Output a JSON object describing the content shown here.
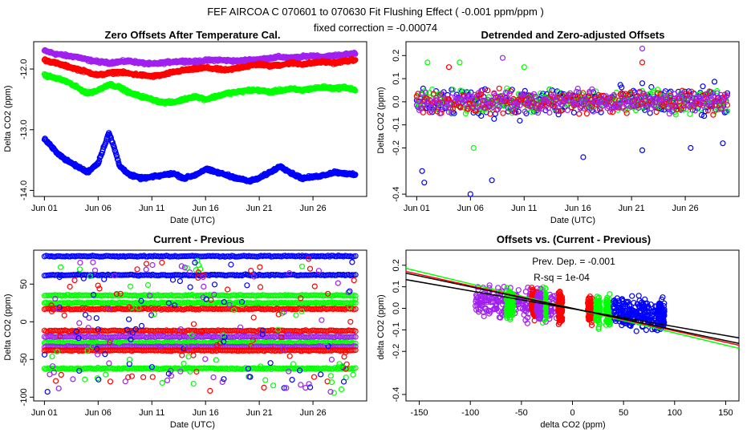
{
  "figure": {
    "title": "FEF   AIRCOA C   070601 to 070630   Fit Flushing Effect ( -0.001 ppm/ppm )",
    "subtitle": "fixed correction = -0.00074"
  },
  "colors": {
    "purple": "#a020f0",
    "red": "#ff0000",
    "green": "#00ff00",
    "blue": "#0000ff",
    "black": "#000000"
  },
  "chart_data": [
    {
      "type": "scatter",
      "title": "Zero Offsets After Temperature Cal.",
      "xlabel": "Date (UTC)",
      "ylabel": "Delta CO2 (ppm)",
      "xlim": [
        0,
        31
      ],
      "ylim": [
        -14.1,
        -11.55
      ],
      "xticks": [
        1,
        6,
        11,
        16,
        21,
        26
      ],
      "xtick_labels": [
        "Jun 01",
        "Jun 06",
        "Jun 11",
        "Jun 16",
        "Jun 21",
        "Jun 26"
      ],
      "yticks": [
        -14.0,
        -13.0,
        -12.0
      ],
      "ytick_labels": [
        "-14.0",
        "-13.0",
        "-12.0"
      ],
      "series": [
        {
          "name": "purple",
          "color": "#a020f0",
          "x": [
            1,
            2,
            3,
            4,
            5,
            6,
            7,
            8,
            9,
            10,
            11,
            12,
            13,
            14,
            15,
            16,
            17,
            18,
            19,
            20,
            21,
            22,
            23,
            24,
            25,
            26,
            27,
            28,
            29,
            30
          ],
          "y": [
            -11.7,
            -11.75,
            -11.78,
            -11.8,
            -11.85,
            -11.88,
            -11.9,
            -11.88,
            -11.87,
            -11.9,
            -11.92,
            -11.9,
            -11.88,
            -11.87,
            -11.88,
            -11.86,
            -11.85,
            -11.86,
            -11.87,
            -11.85,
            -11.84,
            -11.82,
            -11.8,
            -11.82,
            -11.8,
            -11.78,
            -11.8,
            -11.78,
            -11.76,
            -11.74
          ]
        },
        {
          "name": "red",
          "color": "#ff0000",
          "x": [
            1,
            2,
            3,
            4,
            5,
            6,
            7,
            8,
            9,
            10,
            11,
            12,
            13,
            14,
            15,
            16,
            17,
            18,
            19,
            20,
            21,
            22,
            23,
            24,
            25,
            26,
            27,
            28,
            29,
            30
          ],
          "y": [
            -11.85,
            -11.9,
            -11.95,
            -12.0,
            -12.05,
            -12.1,
            -12.07,
            -12.05,
            -12.08,
            -12.1,
            -12.12,
            -12.1,
            -12.05,
            -12.02,
            -12.0,
            -11.98,
            -12.0,
            -12.02,
            -11.98,
            -11.95,
            -11.92,
            -11.95,
            -11.93,
            -11.9,
            -11.92,
            -11.9,
            -11.88,
            -11.9,
            -11.87,
            -11.85
          ]
        },
        {
          "name": "green",
          "color": "#00ff00",
          "x": [
            1,
            2,
            3,
            4,
            5,
            6,
            7,
            8,
            9,
            10,
            11,
            12,
            13,
            14,
            15,
            16,
            17,
            18,
            19,
            20,
            21,
            22,
            23,
            24,
            25,
            26,
            27,
            28,
            29,
            30
          ],
          "y": [
            -12.1,
            -12.15,
            -12.2,
            -12.3,
            -12.4,
            -12.35,
            -12.25,
            -12.3,
            -12.4,
            -12.45,
            -12.5,
            -12.55,
            -12.55,
            -12.5,
            -12.45,
            -12.5,
            -12.45,
            -12.4,
            -12.38,
            -12.35,
            -12.35,
            -12.38,
            -12.35,
            -12.33,
            -12.35,
            -12.32,
            -12.3,
            -12.32,
            -12.3,
            -12.35
          ]
        },
        {
          "name": "blue",
          "color": "#0000ff",
          "x": [
            1,
            2,
            3,
            4,
            5,
            6,
            6.5,
            7,
            7.5,
            8,
            9,
            10,
            11,
            12,
            13,
            14,
            15,
            16,
            17,
            18,
            19,
            20,
            21,
            22,
            23,
            24,
            25,
            26,
            27,
            28,
            29,
            30
          ],
          "y": [
            -13.15,
            -13.35,
            -13.5,
            -13.6,
            -13.7,
            -13.55,
            -13.3,
            -13.05,
            -13.3,
            -13.6,
            -13.75,
            -13.8,
            -13.78,
            -13.75,
            -13.72,
            -13.8,
            -13.75,
            -13.65,
            -13.7,
            -13.75,
            -13.8,
            -13.85,
            -13.8,
            -13.7,
            -13.6,
            -13.72,
            -13.8,
            -13.78,
            -13.75,
            -13.7,
            -13.72,
            -13.75
          ]
        }
      ]
    },
    {
      "type": "scatter",
      "title": "Detrended and Zero-adjusted Offsets",
      "xlabel": "Date (UTC)",
      "ylabel": "Delta CO2 (ppm)",
      "xlim": [
        0,
        31
      ],
      "ylim": [
        -0.41,
        0.26
      ],
      "xticks": [
        1,
        6,
        11,
        16,
        21,
        26
      ],
      "xtick_labels": [
        "Jun 01",
        "Jun 06",
        "Jun 11",
        "Jun 16",
        "Jun 21",
        "Jun 26"
      ],
      "yticks": [
        -0.4,
        -0.2,
        -0.1,
        0.0,
        0.1,
        0.2
      ],
      "ytick_labels": [
        "-0.4",
        "-0.2",
        "-0.1",
        "0.0",
        "0.1",
        "0.2"
      ],
      "series": [
        {
          "name": "blue",
          "color": "#0000ff",
          "spread": 0.1,
          "outliers": [
            [
              1.5,
              -0.3
            ],
            [
              1.7,
              -0.35
            ],
            [
              6,
              -0.4
            ],
            [
              8,
              -0.34
            ],
            [
              16.5,
              -0.24
            ],
            [
              26.5,
              -0.2
            ],
            [
              29.5,
              -0.18
            ],
            [
              22,
              -0.21
            ]
          ]
        },
        {
          "name": "green",
          "color": "#00ff00",
          "spread": 0.07,
          "outliers": [
            [
              2,
              0.17
            ],
            [
              5,
              0.17
            ],
            [
              6.3,
              -0.2
            ],
            [
              11,
              0.15
            ]
          ]
        },
        {
          "name": "red",
          "color": "#ff0000",
          "spread": 0.07,
          "outliers": [
            [
              4,
              0.15
            ],
            [
              22,
              0.17
            ]
          ]
        },
        {
          "name": "purple",
          "color": "#a020f0",
          "spread": 0.07,
          "outliers": [
            [
              22,
              0.23
            ],
            [
              9,
              0.19
            ]
          ]
        }
      ]
    },
    {
      "type": "scatter",
      "title": "Current - Previous",
      "xlabel": "Date (UTC)",
      "ylabel": "Delta CO2 (ppm)",
      "xlim": [
        0,
        31
      ],
      "ylim": [
        -105,
        95
      ],
      "xticks": [
        1,
        6,
        11,
        16,
        21,
        26
      ],
      "xtick_labels": [
        "Jun 01",
        "Jun 06",
        "Jun 11",
        "Jun 16",
        "Jun 21",
        "Jun 26"
      ],
      "yticks": [
        -100,
        -50,
        0,
        50
      ],
      "ytick_labels": [
        "-100",
        "-50",
        "0",
        "50"
      ],
      "bands": [
        {
          "color": "#0000ff",
          "y": 87
        },
        {
          "color": "#0000ff",
          "y": 62
        },
        {
          "color": "#00ff00",
          "y": 35
        },
        {
          "color": "#00ff00",
          "y": 25
        },
        {
          "color": "#ff0000",
          "y": 17
        },
        {
          "color": "#ff0000",
          "y": -12
        },
        {
          "color": "#a020f0",
          "y": -20
        },
        {
          "color": "#00ff00",
          "y": -28
        },
        {
          "color": "#a020f0",
          "y": -33
        },
        {
          "color": "#ff0000",
          "y": -38
        },
        {
          "color": "#00ff00",
          "y": -62
        }
      ]
    },
    {
      "type": "scatter",
      "title": "Offsets vs. (Current - Previous)",
      "xlabel": "delta CO2 (ppm)",
      "ylabel": "delta CO2 (ppm)",
      "xlim": [
        -163,
        163
      ],
      "ylim": [
        -0.43,
        0.27
      ],
      "xticks": [
        -150,
        -100,
        -50,
        0,
        50,
        100,
        150
      ],
      "xtick_labels": [
        "-150",
        "-100",
        "-50",
        "0",
        "50",
        "100",
        "150"
      ],
      "yticks": [
        -0.4,
        -0.2,
        -0.1,
        0.0,
        0.1,
        0.2
      ],
      "ytick_labels": [
        "-0.4",
        "-0.2",
        "-0.1",
        "0.0",
        "0.1",
        "0.2"
      ],
      "annotations": [
        "Prev. Dep. =  -0.001",
        "R-sq =  1e-04"
      ],
      "fit_lines": [
        {
          "color": "#00ff00",
          "slope": -0.00114,
          "intercept": 0.0
        },
        {
          "color": "#ff0000",
          "slope": -0.00105,
          "intercept": 0.0
        },
        {
          "color": "#000000",
          "slope": -0.001,
          "intercept": 0.0
        },
        {
          "color": "#000000",
          "slope": -0.00083,
          "intercept": -0.002
        }
      ],
      "clusters": [
        {
          "color": "#a020f0",
          "x_range": [
            -95,
            -12
          ],
          "center": -40
        },
        {
          "color": "#00ff00",
          "x_range": [
            -65,
            -58
          ],
          "center": -62
        },
        {
          "color": "#ff0000",
          "x_range": [
            -40,
            -36
          ],
          "center": -38
        },
        {
          "color": "#00ff00",
          "x_range": [
            -30,
            -26
          ],
          "center": -28
        },
        {
          "color": "#a020f0",
          "x_range": [
            -35,
            -31
          ],
          "center": -33
        },
        {
          "color": "#ff0000",
          "x_range": [
            -14,
            -10
          ],
          "center": -12
        },
        {
          "color": "#ff0000",
          "x_range": [
            15,
            19
          ],
          "center": 17
        },
        {
          "color": "#00ff00",
          "x_range": [
            23,
            27
          ],
          "center": 25
        },
        {
          "color": "#00ff00",
          "x_range": [
            33,
            37
          ],
          "center": 35
        },
        {
          "color": "#0000ff",
          "x_range": [
            40,
            90
          ],
          "center": 62
        },
        {
          "color": "#0000ff",
          "x_range": [
            84,
            90
          ],
          "center": 87
        }
      ]
    }
  ]
}
